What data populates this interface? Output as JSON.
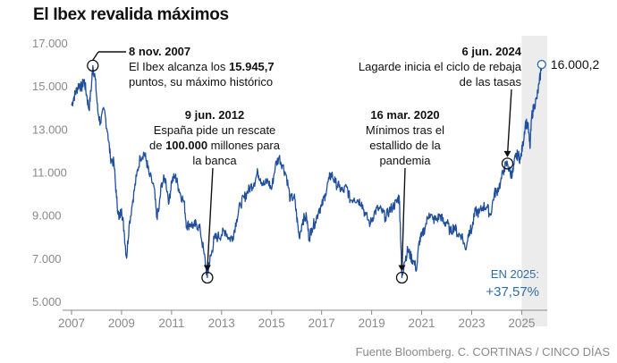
{
  "title": "El Ibex revalida máximos",
  "source": "Fuente Bloomberg. C. CORTINAS / CINCO DÍAS",
  "chart_data": {
    "type": "line",
    "title": "El Ibex revalida máximos",
    "xlabel": "",
    "ylabel": "",
    "ylim": [
      5000,
      17000
    ],
    "xlim": [
      2007.0,
      2025.85
    ],
    "grid": false,
    "y_ticks": [
      "17.000",
      "15.000",
      "13.000",
      "11.000",
      "9.000",
      "7.000",
      "5.000"
    ],
    "y_tick_values": [
      17000,
      15000,
      13000,
      11000,
      9000,
      7000,
      5000
    ],
    "x_ticks": [
      "2007",
      "2009",
      "2011",
      "2013",
      "2015",
      "2017",
      "2019",
      "2021",
      "2023",
      "2025"
    ],
    "x_tick_values": [
      2007,
      2009,
      2011,
      2013,
      2015,
      2017,
      2019,
      2021,
      2023,
      2025
    ],
    "shaded_from": 2025.0,
    "series": [
      {
        "color": "#1f4e9b",
        "points": [
          [
            2007.0,
            14100
          ],
          [
            2007.1,
            14500
          ],
          [
            2007.2,
            14800
          ],
          [
            2007.3,
            15100
          ],
          [
            2007.4,
            14900
          ],
          [
            2007.5,
            15300
          ],
          [
            2007.6,
            14600
          ],
          [
            2007.7,
            13900
          ],
          [
            2007.8,
            15100
          ],
          [
            2007.85,
            15945.7
          ],
          [
            2007.95,
            15300
          ],
          [
            2008.05,
            13800
          ],
          [
            2008.15,
            13300
          ],
          [
            2008.3,
            13900
          ],
          [
            2008.45,
            12800
          ],
          [
            2008.55,
            11700
          ],
          [
            2008.7,
            11400
          ],
          [
            2008.8,
            9800
          ],
          [
            2008.9,
            8800
          ],
          [
            2009.0,
            9300
          ],
          [
            2009.1,
            8300
          ],
          [
            2009.2,
            7000
          ],
          [
            2009.3,
            8500
          ],
          [
            2009.45,
            9700
          ],
          [
            2009.6,
            10800
          ],
          [
            2009.75,
            11700
          ],
          [
            2009.9,
            11900
          ],
          [
            2010.0,
            11500
          ],
          [
            2010.1,
            10900
          ],
          [
            2010.3,
            10300
          ],
          [
            2010.4,
            8900
          ],
          [
            2010.5,
            9300
          ],
          [
            2010.6,
            10500
          ],
          [
            2010.75,
            10700
          ],
          [
            2010.9,
            9600
          ],
          [
            2011.0,
            10600
          ],
          [
            2011.15,
            10800
          ],
          [
            2011.25,
            10400
          ],
          [
            2011.35,
            10000
          ],
          [
            2011.5,
            9600
          ],
          [
            2011.6,
            8500
          ],
          [
            2011.75,
            8600
          ],
          [
            2011.9,
            8500
          ],
          [
            2012.0,
            8600
          ],
          [
            2012.15,
            8300
          ],
          [
            2012.3,
            7200
          ],
          [
            2012.43,
            6100
          ],
          [
            2012.5,
            6800
          ],
          [
            2012.6,
            7200
          ],
          [
            2012.7,
            7900
          ],
          [
            2012.85,
            8000
          ],
          [
            2013.0,
            8100
          ],
          [
            2013.15,
            8300
          ],
          [
            2013.3,
            7900
          ],
          [
            2013.45,
            8000
          ],
          [
            2013.6,
            8800
          ],
          [
            2013.75,
            9500
          ],
          [
            2013.9,
            9800
          ],
          [
            2014.0,
            10000
          ],
          [
            2014.15,
            10300
          ],
          [
            2014.3,
            10500
          ],
          [
            2014.45,
            11000
          ],
          [
            2014.55,
            10700
          ],
          [
            2014.7,
            10400
          ],
          [
            2014.85,
            10600
          ],
          [
            2015.0,
            10200
          ],
          [
            2015.15,
            11300
          ],
          [
            2015.3,
            11700
          ],
          [
            2015.45,
            11300
          ],
          [
            2015.6,
            10800
          ],
          [
            2015.75,
            9700
          ],
          [
            2015.9,
            9900
          ],
          [
            2016.0,
            9000
          ],
          [
            2016.1,
            8000
          ],
          [
            2016.25,
            8800
          ],
          [
            2016.4,
            8900
          ],
          [
            2016.5,
            7900
          ],
          [
            2016.6,
            8400
          ],
          [
            2016.75,
            8700
          ],
          [
            2016.9,
            9300
          ],
          [
            2017.0,
            9400
          ],
          [
            2017.15,
            10000
          ],
          [
            2017.3,
            10700
          ],
          [
            2017.4,
            10900
          ],
          [
            2017.55,
            10500
          ],
          [
            2017.7,
            10300
          ],
          [
            2017.85,
            10100
          ],
          [
            2018.0,
            10300
          ],
          [
            2018.15,
            9700
          ],
          [
            2018.3,
            9800
          ],
          [
            2018.45,
            9700
          ],
          [
            2018.6,
            9600
          ],
          [
            2018.75,
            9000
          ],
          [
            2018.95,
            8600
          ],
          [
            2019.1,
            9100
          ],
          [
            2019.25,
            9300
          ],
          [
            2019.4,
            9200
          ],
          [
            2019.55,
            8900
          ],
          [
            2019.7,
            9200
          ],
          [
            2019.85,
            9400
          ],
          [
            2020.0,
            9600
          ],
          [
            2020.1,
            9900
          ],
          [
            2020.15,
            8400
          ],
          [
            2020.21,
            6100
          ],
          [
            2020.3,
            6800
          ],
          [
            2020.45,
            7400
          ],
          [
            2020.55,
            7100
          ],
          [
            2020.65,
            6900
          ],
          [
            2020.8,
            6500
          ],
          [
            2020.9,
            7800
          ],
          [
            2021.0,
            8000
          ],
          [
            2021.15,
            8500
          ],
          [
            2021.3,
            9100
          ],
          [
            2021.45,
            8800
          ],
          [
            2021.6,
            8800
          ],
          [
            2021.75,
            9000
          ],
          [
            2021.9,
            8600
          ],
          [
            2022.0,
            8700
          ],
          [
            2022.15,
            8200
          ],
          [
            2022.3,
            8500
          ],
          [
            2022.45,
            8100
          ],
          [
            2022.6,
            8100
          ],
          [
            2022.75,
            7400
          ],
          [
            2022.9,
            8300
          ],
          [
            2023.0,
            8300
          ],
          [
            2023.15,
            9200
          ],
          [
            2023.3,
            9100
          ],
          [
            2023.45,
            9400
          ],
          [
            2023.6,
            9400
          ],
          [
            2023.75,
            9000
          ],
          [
            2023.9,
            10000
          ],
          [
            2024.0,
            10100
          ],
          [
            2024.15,
            10500
          ],
          [
            2024.3,
            11200
          ],
          [
            2024.43,
            11400
          ],
          [
            2024.55,
            10900
          ],
          [
            2024.65,
            11000
          ],
          [
            2024.75,
            11700
          ],
          [
            2024.85,
            11800
          ],
          [
            2024.95,
            11600
          ],
          [
            2025.05,
            12300
          ],
          [
            2025.15,
            13300
          ],
          [
            2025.25,
            13200
          ],
          [
            2025.33,
            12100
          ],
          [
            2025.4,
            13600
          ],
          [
            2025.5,
            14100
          ],
          [
            2025.6,
            14400
          ],
          [
            2025.7,
            15100
          ],
          [
            2025.8,
            16000.2
          ]
        ]
      }
    ],
    "annotations": [
      {
        "date": "8 nov. 2007",
        "lines": [
          [
            [
              "El Ibex alcanza los ",
              false
            ],
            [
              "15.945,7",
              true
            ]
          ],
          [
            [
              "puntos, su máximo histórico",
              false
            ]
          ]
        ],
        "x": 2007.85,
        "y": 15945.7
      },
      {
        "date": "9 jun. 2012",
        "lines": [
          [
            [
              "España pide un rescate",
              false
            ]
          ],
          [
            [
              "de ",
              false
            ],
            [
              "100.000",
              true
            ],
            [
              " millones para",
              false
            ]
          ],
          [
            [
              "la banca",
              false
            ]
          ]
        ],
        "x": 2012.43,
        "y": 6100
      },
      {
        "date": "16 mar. 2020",
        "lines": [
          [
            [
              "Mínimos tras el",
              false
            ]
          ],
          [
            [
              "estallido de la",
              false
            ]
          ],
          [
            [
              "pandemia",
              false
            ]
          ]
        ],
        "x": 2020.21,
        "y": 6100
      },
      {
        "date": "6 jun. 2024",
        "lines": [
          [
            [
              "Lagarde inicia el ciclo de rebaja",
              false
            ]
          ],
          [
            [
              "de las tasas",
              false
            ]
          ]
        ],
        "x": 2024.43,
        "y": 11400
      }
    ],
    "last_value_label": "16.000,2",
    "box_label": "EN 2025:",
    "box_value": "+37,57%"
  }
}
